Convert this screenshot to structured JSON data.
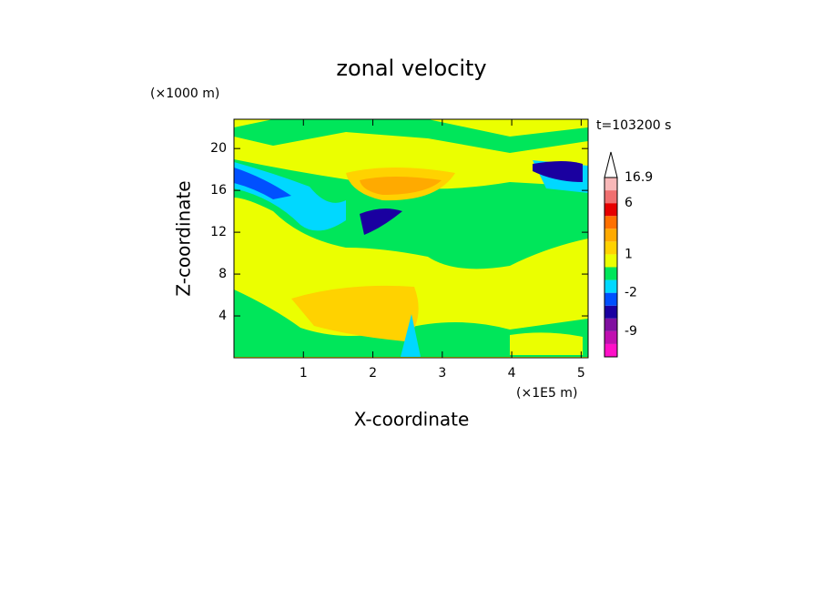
{
  "chart_data": {
    "type": "contour",
    "title": "zonal velocity",
    "x_label": "X-coordinate",
    "y_label": "Z-coordinate",
    "x_unit": "(×1E5 m)",
    "y_unit": "(×1000 m)",
    "annotation": "t=103200 s",
    "xlim": [
      0,
      5.1
    ],
    "xticks": [
      1,
      2,
      3,
      4,
      5
    ],
    "ylim": [
      0,
      22.8
    ],
    "yticks": [
      4,
      8,
      12,
      16,
      20
    ],
    "colorbar": {
      "levels": [
        -16,
        -12,
        -9,
        -6,
        -3,
        -2,
        -1,
        0,
        1,
        2,
        3,
        4.5,
        6,
        10,
        16.9
      ],
      "colors": [
        "#ff10c8",
        "#c010b0",
        "#8010a0",
        "#1a00a0",
        "#0050ff",
        "#00d8ff",
        "#00e65a",
        "#ebff00",
        "#ffd200",
        "#ffaa00",
        "#ff7000",
        "#e60000",
        "#f07070",
        "#f8b8b8"
      ],
      "ticks": [
        16.9,
        6,
        1,
        -2,
        -9
      ]
    }
  }
}
